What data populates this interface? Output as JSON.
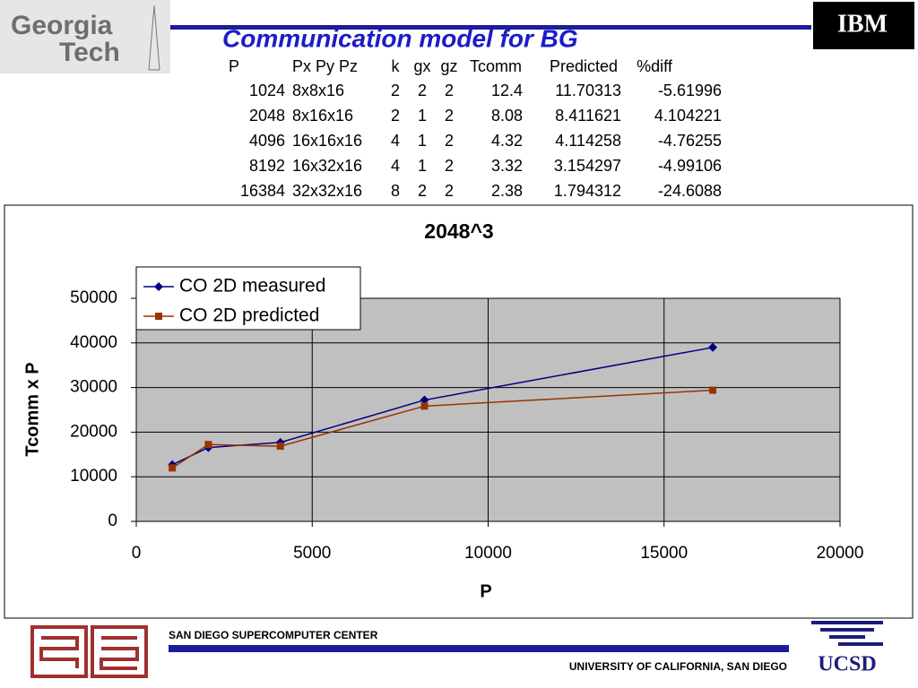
{
  "header": {
    "logo_lines": [
      "Georgia",
      "Tech"
    ],
    "title": "Communication model for BG",
    "ibm": "IBM"
  },
  "table": {
    "columns": [
      "P",
      "Px Py Pz",
      "k",
      "gx",
      "gz",
      "Tcomm",
      "Predicted",
      "%diff"
    ],
    "rows": [
      [
        "1024",
        "8x8x16",
        "2",
        "2",
        "2",
        "12.4",
        "11.70313",
        "-5.61996"
      ],
      [
        "2048",
        "8x16x16",
        "2",
        "1",
        "2",
        "8.08",
        "8.411621",
        "4.104221"
      ],
      [
        "4096",
        "16x16x16",
        "4",
        "1",
        "2",
        "4.32",
        "4.114258",
        "-4.76255"
      ],
      [
        "8192",
        "16x32x16",
        "4",
        "1",
        "2",
        "3.32",
        "3.154297",
        "-4.99106"
      ],
      [
        "16384",
        "32x32x16",
        "8",
        "2",
        "2",
        "2.38",
        "1.794312",
        "-24.6088"
      ]
    ]
  },
  "chart_data": {
    "type": "line",
    "title": "2048^3",
    "x_label": "P",
    "y_label": "Tcomm x P",
    "x": [
      1024,
      2048,
      4096,
      8192,
      16384
    ],
    "series": [
      {
        "name": "CO 2D measured",
        "color": "#000080",
        "marker": "diamond",
        "values": [
          12698,
          16548,
          17695,
          27197,
          38994
        ]
      },
      {
        "name": "CO 2D predicted",
        "color": "#993300",
        "marker": "square",
        "values": [
          11984,
          17227,
          16852,
          25840,
          29398
        ]
      }
    ],
    "xlim": [
      0,
      20000
    ],
    "xticks": [
      0,
      5000,
      10000,
      15000,
      20000
    ],
    "ylim": [
      0,
      50000
    ],
    "yticks": [
      0,
      10000,
      20000,
      30000,
      40000,
      50000
    ],
    "grid": true,
    "legend": "top-left",
    "plot_background": "#c0c0c0"
  },
  "footer": {
    "left": "SAN DIEGO SUPERCOMPUTER CENTER",
    "right": "UNIVERSITY OF CALIFORNIA, SAN DIEGO",
    "ucsd": "UCSD"
  }
}
